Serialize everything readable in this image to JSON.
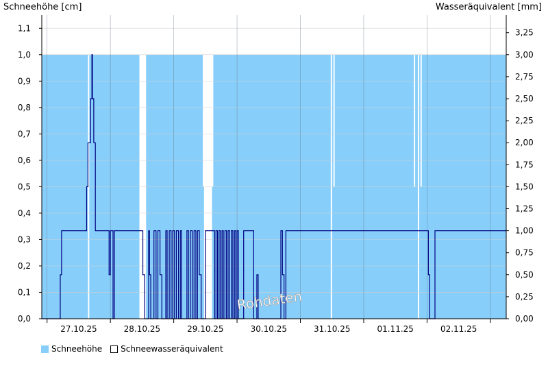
{
  "chart_data": {
    "type": "area",
    "left_axis_title": "Schneehöhe [cm]",
    "right_axis_title": "Wasseräquivalent [mm]",
    "left_ticks": [
      "0,0",
      "0,1",
      "0,2",
      "0,3",
      "0,4",
      "0,5",
      "0,6",
      "0,7",
      "0,8",
      "0,9",
      "1,0",
      "1,1"
    ],
    "right_ticks": [
      "0,00",
      "0,25",
      "0,50",
      "0,75",
      "1,00",
      "1,25",
      "1,50",
      "1,75",
      "2,00",
      "2,25",
      "2,50",
      "2,75",
      "3,00",
      "3,25"
    ],
    "ylim_left": [
      0,
      1.15
    ],
    "ylim_right": [
      0,
      3.45
    ],
    "x_labels": [
      "27.10.25",
      "28.10.25",
      "29.10.25",
      "30.10.25",
      "31.10.25",
      "01.11.25",
      "02.11.25"
    ],
    "x_range_hours": [
      0,
      176
    ],
    "legend": [
      "Schneehöhe",
      "Schneewasseräquivalent"
    ],
    "watermark": "Rohdaten",
    "colors": {
      "snow_depth": "#87cefa",
      "swe": "#000080",
      "grid": "#d3d3d3"
    },
    "series": [
      {
        "name": "Schneehöhe",
        "unit": "cm",
        "baseline_value": 1.0,
        "gaps": [
          [
            17.5,
            18.0
          ],
          [
            37.0,
            39.5
          ],
          [
            61.5,
            64.5
          ],
          [
            109.5,
            110.0
          ],
          [
            142.5,
            143.0
          ]
        ],
        "dips": [
          {
            "value": 0.5,
            "ranges": [
              [
                38.0,
                38.5
              ],
              [
                61.0,
                61.5
              ],
              [
                64.5,
                65.0
              ],
              [
                110.5,
                111.0
              ],
              [
                141.0,
                141.5
              ],
              [
                143.5,
                144.0
              ]
            ]
          },
          {
            "value": 0.0,
            "ranges": [
              [
                38.5,
                39.5
              ],
              [
                61.5,
                64.5
              ]
            ]
          }
        ]
      },
      {
        "name": "Schneewasseräquivalent",
        "unit": "mm",
        "steps": [
          [
            0,
            0
          ],
          [
            6.5,
            0
          ],
          [
            7,
            0.5
          ],
          [
            7.5,
            1.0
          ],
          [
            16.5,
            1.0
          ],
          [
            17,
            1.5
          ],
          [
            17.5,
            2.0
          ],
          [
            18.5,
            2.5
          ],
          [
            19,
            3.0
          ],
          [
            19.2,
            2.5
          ],
          [
            19.7,
            2.0
          ],
          [
            20.3,
            1.0
          ],
          [
            25.3,
            1.0
          ],
          [
            25.5,
            0.5
          ],
          [
            26.0,
            1.0
          ],
          [
            27.0,
            0
          ],
          [
            27.5,
            1.0
          ],
          [
            37.8,
            1.0
          ],
          [
            38.3,
            0.5
          ],
          [
            39.0,
            0
          ],
          [
            40.5,
            1.0
          ],
          [
            40.8,
            0.5
          ],
          [
            41.3,
            0
          ],
          [
            42.0,
            0
          ],
          [
            42.5,
            1.0
          ],
          [
            43.3,
            0
          ],
          [
            44.0,
            1.0
          ],
          [
            44.8,
            0.5
          ],
          [
            45.5,
            0
          ],
          [
            47.0,
            1.0
          ],
          [
            47.5,
            0
          ],
          [
            48.3,
            1.0
          ],
          [
            49.0,
            0
          ],
          [
            49.6,
            1.0
          ],
          [
            50.3,
            0
          ],
          [
            51.0,
            1.0
          ],
          [
            51.8,
            0
          ],
          [
            52.5,
            1.0
          ],
          [
            53.0,
            0
          ],
          [
            55.0,
            1.0
          ],
          [
            55.6,
            0
          ],
          [
            56.3,
            1.0
          ],
          [
            57.0,
            0
          ],
          [
            57.7,
            1.0
          ],
          [
            58.4,
            0
          ],
          [
            59.0,
            1.0
          ],
          [
            59.7,
            0.5
          ],
          [
            60.4,
            0
          ],
          [
            62.0,
            1.0
          ],
          [
            64.8,
            1.0
          ],
          [
            65.5,
            0
          ],
          [
            66.0,
            1.0
          ],
          [
            66.6,
            0
          ],
          [
            67.2,
            1.0
          ],
          [
            67.7,
            0
          ],
          [
            68.3,
            1.0
          ],
          [
            68.8,
            0
          ],
          [
            69.4,
            1.0
          ],
          [
            70.0,
            0
          ],
          [
            70.6,
            1.0
          ],
          [
            71.2,
            0
          ],
          [
            71.8,
            1.0
          ],
          [
            72.4,
            0
          ],
          [
            73.0,
            1.0
          ],
          [
            73.5,
            0
          ],
          [
            74.0,
            1.0
          ],
          [
            74.5,
            0
          ],
          [
            76.0,
            0
          ],
          [
            76.5,
            1.0
          ],
          [
            79.8,
            1.0
          ],
          [
            80.3,
            0
          ],
          [
            81.0,
            0
          ],
          [
            81.5,
            0.5
          ],
          [
            82.0,
            0
          ],
          [
            90.0,
            0
          ],
          [
            90.6,
            1.0
          ],
          [
            91.2,
            0.5
          ],
          [
            91.8,
            0
          ],
          [
            92.5,
            1.0
          ],
          [
            146.0,
            1.0
          ],
          [
            146.5,
            0.5
          ],
          [
            147.0,
            0
          ],
          [
            148.5,
            0
          ],
          [
            149.0,
            1.0
          ],
          [
            176,
            1.0
          ]
        ]
      }
    ]
  }
}
